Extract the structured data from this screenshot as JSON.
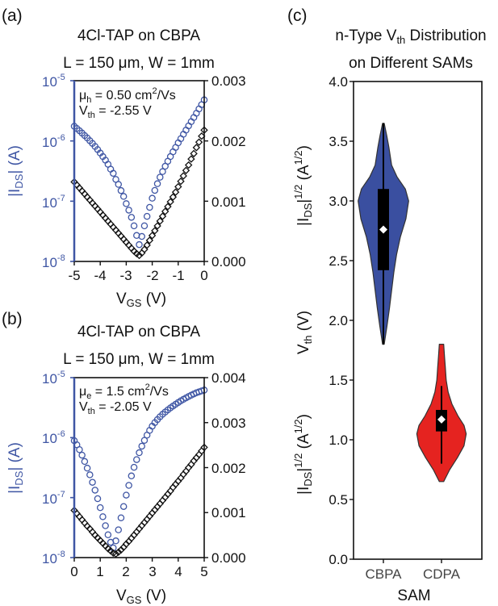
{
  "colors": {
    "blue": "#3f56a4",
    "black": "#111111",
    "violin_blue": "#3a4fa0",
    "violin_red": "#e52320",
    "box": "#000000",
    "median": "#ffffff"
  },
  "chart_data": [
    {
      "panel": "(a)",
      "type": "scatter",
      "title": "4Cl-TAP on CBPA",
      "subtitle": "L = 150 μm, W = 1mm",
      "annotation": {
        "mu_sym": "μ",
        "mu_sub": "h",
        "mu_val": " = 0.50 cm",
        "mu_sup": "2",
        "mu_unit": "/Vs",
        "vth_sym": "V",
        "vth_sub": "th",
        "vth_val": " = -2.55 V"
      },
      "xlabel": {
        "main": "V",
        "sub": "GS",
        "rest": " (V)"
      },
      "ylabel_left": {
        "pre": "|I",
        "sub": "DS",
        "rest": "| (A)"
      },
      "ylabel_right": {
        "pre": "|I",
        "sub": "DS",
        "post": "|",
        "sup": "1/2",
        "rest": " (A",
        "sup2": "1/2",
        "end": ")"
      },
      "xlim": [
        -5,
        0
      ],
      "xticks": [
        "-5",
        "-4",
        "-3",
        "-2",
        "-1",
        "0"
      ],
      "ylim_left_log": [
        -8,
        -5
      ],
      "yticks_left": [
        {
          "base": "10",
          "exp": "-5"
        },
        {
          "base": "10",
          "exp": "-6"
        },
        {
          "base": "10",
          "exp": "-7"
        },
        {
          "base": "10",
          "exp": "-8"
        }
      ],
      "ylim_right": [
        0,
        0.003
      ],
      "yticks_right": [
        "0.003",
        "0.002",
        "0.001",
        "0.000"
      ],
      "series": [
        {
          "axis": "left-log",
          "marker": "circle",
          "x": [
            -5.0,
            -4.9,
            -4.8,
            -4.7,
            -4.6,
            -4.5,
            -4.4,
            -4.3,
            -4.2,
            -4.1,
            -4.0,
            -3.9,
            -3.8,
            -3.7,
            -3.6,
            -3.5,
            -3.4,
            -3.3,
            -3.2,
            -3.1,
            -3.0,
            -2.9,
            -2.8,
            -2.7,
            -2.6,
            -2.5,
            -2.4,
            -2.3,
            -2.2,
            -2.1,
            -2.0,
            -1.9,
            -1.8,
            -1.7,
            -1.6,
            -1.5,
            -1.4,
            -1.3,
            -1.2,
            -1.1,
            -1.0,
            -0.9,
            -0.8,
            -0.7,
            -0.6,
            -0.5,
            -0.4,
            -0.3,
            -0.2,
            -0.1,
            0.0
          ],
          "y": [
            1.75e-06,
            1.61e-06,
            1.48e-06,
            1.35e-06,
            1.23e-06,
            1.12e-06,
            1.01e-06,
            9.1e-07,
            8.1e-07,
            7.2e-07,
            6.3e-07,
            5.5e-07,
            4.8e-07,
            4.1e-07,
            3.4e-07,
            2.9e-07,
            2.3e-07,
            1.9e-07,
            1.5e-07,
            1.2e-07,
            9.1e-08,
            7.1e-08,
            5.4e-08,
            3.9e-08,
            2.7e-08,
            1.9e-08,
            2.6e-08,
            3.9e-08,
            5.6e-08,
            7.9e-08,
            1.12e-07,
            1.51e-07,
            1.95e-07,
            2.5e-07,
            3.1e-07,
            3.8e-07,
            4.6e-07,
            5.5e-07,
            6.6e-07,
            7.8e-07,
            9.3e-07,
            1.09e-06,
            1.29e-06,
            1.51e-06,
            1.78e-06,
            2.09e-06,
            2.45e-06,
            2.88e-06,
            3.4e-06,
            4e-06,
            4.8e-06
          ]
        },
        {
          "axis": "right-linear",
          "marker": "diamond",
          "x": [
            -5.0,
            -4.9,
            -4.8,
            -4.7,
            -4.6,
            -4.5,
            -4.4,
            -4.3,
            -4.2,
            -4.1,
            -4.0,
            -3.9,
            -3.8,
            -3.7,
            -3.6,
            -3.5,
            -3.4,
            -3.3,
            -3.2,
            -3.1,
            -3.0,
            -2.9,
            -2.8,
            -2.7,
            -2.6,
            -2.5,
            -2.4,
            -2.3,
            -2.2,
            -2.1,
            -2.0,
            -1.9,
            -1.8,
            -1.7,
            -1.6,
            -1.5,
            -1.4,
            -1.3,
            -1.2,
            -1.1,
            -1.0,
            -0.9,
            -0.8,
            -0.7,
            -0.6,
            -0.5,
            -0.4,
            -0.3,
            -0.2,
            -0.1,
            0.0
          ],
          "y": [
            0.00132,
            0.00127,
            0.00122,
            0.00117,
            0.00112,
            0.00107,
            0.00102,
            0.00097,
            0.00092,
            0.00087,
            0.00082,
            0.00077,
            0.00072,
            0.00067,
            0.00062,
            0.00057,
            0.00052,
            0.00047,
            0.00042,
            0.00037,
            0.00032,
            0.00027,
            0.00022,
            0.00017,
            0.00013,
            0.0001,
            0.00014,
            0.0002,
            0.00027,
            0.00035,
            0.00043,
            0.00051,
            0.00059,
            0.00067,
            0.00075,
            0.00083,
            0.00091,
            0.00099,
            0.00107,
            0.00115,
            0.00124,
            0.00133,
            0.00142,
            0.00151,
            0.0016,
            0.0017,
            0.00179,
            0.00189,
            0.00198,
            0.00208,
            0.00218
          ]
        }
      ]
    },
    {
      "panel": "(b)",
      "type": "scatter",
      "title": "4Cl-TAP on CBPA",
      "subtitle": "L = 150 μm, W = 1mm",
      "annotation": {
        "mu_sym": "μ",
        "mu_sub": "e",
        "mu_val": " = 1.5 cm",
        "mu_sup": "2",
        "mu_unit": "/Vs",
        "vth_sym": "V",
        "vth_sub": "th",
        "vth_val": " = -2.05 V"
      },
      "xlabel": {
        "main": "V",
        "sub": "GS",
        "rest": " (V)"
      },
      "ylabel_left": {
        "pre": "|I",
        "sub": "DS",
        "rest": "| (A)"
      },
      "ylabel_right": {
        "pre": "|I",
        "sub": "DS",
        "post": "|",
        "sup": "1/2",
        "rest": " (A",
        "sup2": "1/2",
        "end": ")"
      },
      "xlim": [
        0,
        5
      ],
      "xticks": [
        "0",
        "1",
        "2",
        "3",
        "4",
        "5"
      ],
      "ylim_left_log": [
        -8,
        -5
      ],
      "yticks_left": [
        {
          "base": "10",
          "exp": "-5"
        },
        {
          "base": "10",
          "exp": "-6"
        },
        {
          "base": "10",
          "exp": "-7"
        },
        {
          "base": "10",
          "exp": "-8"
        }
      ],
      "ylim_right": [
        0,
        0.004
      ],
      "yticks_right": [
        "0.004",
        "0.003",
        "0.002",
        "0.001",
        "0.000"
      ],
      "series": [
        {
          "axis": "left-log",
          "marker": "circle",
          "x": [
            0.0,
            0.1,
            0.2,
            0.3,
            0.4,
            0.5,
            0.6,
            0.7,
            0.8,
            0.9,
            1.0,
            1.1,
            1.2,
            1.3,
            1.4,
            1.5,
            1.6,
            1.7,
            1.8,
            1.9,
            2.0,
            2.1,
            2.2,
            2.3,
            2.4,
            2.5,
            2.6,
            2.7,
            2.8,
            2.9,
            3.0,
            3.1,
            3.2,
            3.3,
            3.4,
            3.5,
            3.6,
            3.7,
            3.8,
            3.9,
            4.0,
            4.1,
            4.2,
            4.3,
            4.4,
            4.5,
            4.6,
            4.7,
            4.8,
            4.9,
            5.0
          ],
          "y": [
            8.9e-07,
            7.6e-07,
            6.3e-07,
            5.1e-07,
            4e-07,
            3.1e-07,
            2.4e-07,
            1.8e-07,
            1.33e-07,
            9.6e-08,
            6.8e-08,
            4.8e-08,
            3.4e-08,
            2.4e-08,
            1.8e-08,
            1.45e-08,
            1.9e-08,
            2.9e-08,
            4.6e-08,
            7.1e-08,
            1.1e-07,
            1.6e-07,
            2.3e-07,
            3.2e-07,
            4.3e-07,
            5.6e-07,
            7.2e-07,
            9e-07,
            1.1e-06,
            1.32e-06,
            1.55e-06,
            1.78e-06,
            2e-06,
            2.23e-06,
            2.45e-06,
            2.67e-06,
            2.9e-06,
            3.13e-06,
            3.36e-06,
            3.6e-06,
            3.85e-06,
            4.1e-06,
            4.35e-06,
            4.6e-06,
            4.85e-06,
            5.1e-06,
            5.35e-06,
            5.6e-06,
            5.8e-06,
            6e-06,
            6.2e-06
          ]
        },
        {
          "axis": "right-linear",
          "marker": "diamond",
          "x": [
            0.0,
            0.1,
            0.2,
            0.3,
            0.4,
            0.5,
            0.6,
            0.7,
            0.8,
            0.9,
            1.0,
            1.1,
            1.2,
            1.3,
            1.4,
            1.5,
            1.6,
            1.7,
            1.8,
            1.9,
            2.0,
            2.1,
            2.2,
            2.3,
            2.4,
            2.5,
            2.6,
            2.7,
            2.8,
            2.9,
            3.0,
            3.1,
            3.2,
            3.3,
            3.4,
            3.5,
            3.6,
            3.7,
            3.8,
            3.9,
            4.0,
            4.1,
            4.2,
            4.3,
            4.4,
            4.5,
            4.6,
            4.7,
            4.8,
            4.9,
            5.0
          ],
          "y": [
            0.00105,
            0.00098,
            0.00091,
            0.00084,
            0.00077,
            0.0007,
            0.00064,
            0.00057,
            0.0005,
            0.00044,
            0.00038,
            0.00032,
            0.00026,
            0.0002,
            0.00015,
            0.0001,
            8e-05,
            0.00012,
            0.00017,
            0.00023,
            0.0003,
            0.00036,
            0.00043,
            0.0005,
            0.00057,
            0.00064,
            0.00071,
            0.00078,
            0.00085,
            0.00092,
            0.00099,
            0.00106,
            0.00113,
            0.0012,
            0.00127,
            0.00134,
            0.00141,
            0.00148,
            0.00156,
            0.00163,
            0.0017,
            0.00177,
            0.00185,
            0.00192,
            0.002,
            0.00207,
            0.00215,
            0.00222,
            0.00229,
            0.00237,
            0.00245
          ]
        }
      ]
    },
    {
      "panel": "(c)",
      "type": "violin",
      "title": {
        "pre": "n-Type V",
        "sub": "th",
        "post": " Distribution"
      },
      "subtitle": "on Different SAMs",
      "xlabel": "SAM",
      "ylabel": {
        "main": "V",
        "sub": "th",
        "rest": " (V)"
      },
      "overlay_labels": [
        {
          "pre": "|I",
          "sub": "DS",
          "post": "|",
          "sup": "1/2",
          "rest": " (A",
          "sup2": "1/2",
          "end": ")"
        },
        {
          "pre": "|I",
          "sub": "DS",
          "post": "|",
          "sup": "1/2",
          "rest": " (A",
          "sup2": "1/2",
          "end": ")"
        }
      ],
      "ylim": [
        0.0,
        4.0
      ],
      "yticks": [
        "0.0",
        "0.5",
        "1.0",
        "1.5",
        "2.0",
        "2.5",
        "3.0",
        "3.5",
        "4.0"
      ],
      "categories": [
        "CBPA",
        "CDPA"
      ],
      "groups": [
        {
          "category": "CBPA",
          "min": 1.8,
          "q1": 2.42,
          "median": 2.76,
          "q3": 3.1,
          "max": 3.65,
          "density": [
            [
              1.8,
              0.03
            ],
            [
              1.95,
              0.13
            ],
            [
              2.1,
              0.22
            ],
            [
              2.25,
              0.3
            ],
            [
              2.4,
              0.38
            ],
            [
              2.55,
              0.48
            ],
            [
              2.7,
              0.62
            ],
            [
              2.85,
              0.82
            ],
            [
              3.0,
              0.92
            ],
            [
              3.1,
              0.8
            ],
            [
              3.2,
              0.5
            ],
            [
              3.3,
              0.3
            ],
            [
              3.45,
              0.2
            ],
            [
              3.55,
              0.12
            ],
            [
              3.65,
              0.03
            ]
          ]
        },
        {
          "category": "CDPA",
          "min": 0.8,
          "q1": 1.07,
          "median": 1.17,
          "q3": 1.25,
          "max": 1.45,
          "density": [
            [
              0.65,
              0.08
            ],
            [
              0.75,
              0.3
            ],
            [
              0.85,
              0.58
            ],
            [
              0.95,
              0.82
            ],
            [
              1.05,
              0.9
            ],
            [
              1.12,
              0.82
            ],
            [
              1.2,
              0.6
            ],
            [
              1.3,
              0.38
            ],
            [
              1.4,
              0.24
            ],
            [
              1.5,
              0.17
            ],
            [
              1.6,
              0.14
            ],
            [
              1.7,
              0.11
            ],
            [
              1.8,
              0.08
            ]
          ]
        }
      ]
    }
  ]
}
